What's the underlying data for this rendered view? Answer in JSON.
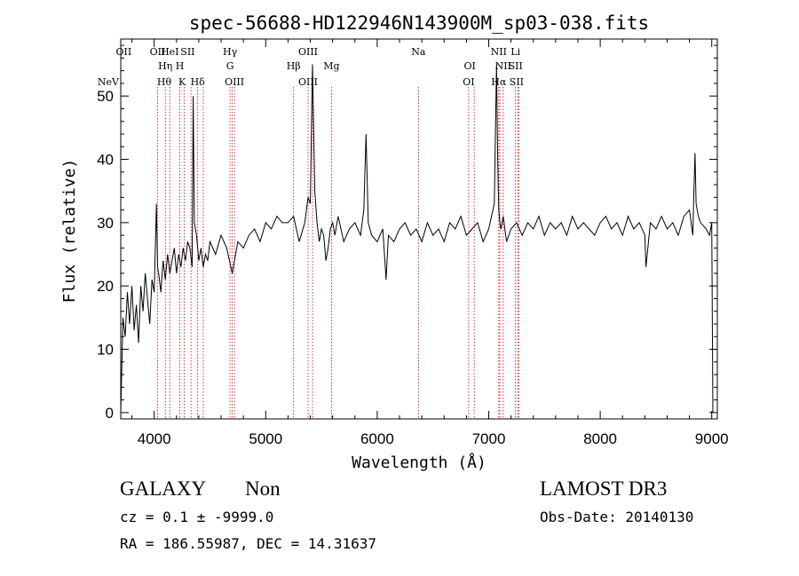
{
  "chart_data": {
    "type": "line",
    "title": "spec-56688-HD122946N143900M_sp03-038.fits",
    "xlabel": "Wavelength (Å)",
    "ylabel": "Flux (relative)",
    "xlim": [
      3700,
      9050
    ],
    "ylim": [
      -1,
      59
    ],
    "grid": false,
    "x_ticks": [
      4000,
      5000,
      6000,
      7000,
      8000,
      9000
    ],
    "y_ticks": [
      0,
      10,
      20,
      30,
      40,
      50
    ],
    "series": [
      {
        "x": [
          3700,
          3720,
          3740,
          3760,
          3780,
          3800,
          3820,
          3840,
          3860,
          3880,
          3900,
          3920,
          3940,
          3960,
          3980,
          4000,
          4020,
          4030,
          4040,
          4060,
          4080,
          4100,
          4120,
          4140,
          4160,
          4180,
          4200,
          4220,
          4240,
          4260,
          4280,
          4300,
          4320,
          4340,
          4350,
          4360,
          4380,
          4400,
          4420,
          4440,
          4460,
          4480,
          4500,
          4550,
          4600,
          4650,
          4700,
          4750,
          4800,
          4850,
          4900,
          4950,
          5000,
          5050,
          5100,
          5150,
          5200,
          5250,
          5300,
          5350,
          5380,
          5400,
          5420,
          5440,
          5460,
          5480,
          5500,
          5520,
          5540,
          5560,
          5580,
          5600,
          5620,
          5650,
          5700,
          5750,
          5800,
          5850,
          5880,
          5900,
          5920,
          5950,
          6000,
          6050,
          6080,
          6100,
          6150,
          6200,
          6250,
          6300,
          6350,
          6400,
          6450,
          6500,
          6550,
          6600,
          6650,
          6700,
          6750,
          6800,
          6850,
          6900,
          6950,
          7000,
          7050,
          7070,
          7080,
          7090,
          7100,
          7110,
          7130,
          7160,
          7200,
          7250,
          7300,
          7350,
          7400,
          7450,
          7500,
          7550,
          7600,
          7650,
          7700,
          7750,
          7800,
          7850,
          7900,
          7950,
          8000,
          8050,
          8100,
          8150,
          8200,
          8250,
          8300,
          8350,
          8400,
          8410,
          8450,
          8500,
          8550,
          8600,
          8650,
          8700,
          8750,
          8800,
          8830,
          8840,
          8850,
          8860,
          8880,
          8900,
          8950,
          8980,
          9000,
          9010
        ],
        "values": [
          0,
          15,
          12,
          19,
          14,
          20,
          13,
          17,
          11,
          20,
          16,
          22,
          18,
          14,
          21,
          19,
          33,
          23,
          22,
          19,
          24,
          21,
          25,
          22,
          24,
          26,
          22,
          25,
          23,
          26,
          24,
          27,
          26,
          23,
          50,
          30,
          28,
          24,
          26,
          23,
          25,
          24,
          27,
          25,
          28,
          26,
          22,
          27,
          26,
          28,
          29,
          27,
          30,
          29,
          31,
          30,
          30,
          31,
          27,
          30,
          34,
          33,
          55,
          35,
          30,
          27,
          29,
          28,
          24,
          26,
          29,
          30,
          28,
          31,
          27,
          29,
          30,
          28,
          32,
          44,
          30,
          28,
          27,
          29,
          21,
          28,
          27,
          29,
          30,
          28,
          29,
          27,
          30,
          28,
          29,
          27,
          30,
          29,
          31,
          28,
          29,
          30,
          27,
          29,
          33,
          55,
          40,
          32,
          30,
          29,
          31,
          27,
          29,
          30,
          28,
          30,
          29,
          31,
          28,
          30,
          29,
          30,
          28,
          31,
          29,
          30,
          29,
          28,
          30,
          31,
          29,
          30,
          28,
          31,
          29,
          30,
          28,
          23,
          30,
          29,
          31,
          29,
          30,
          28,
          31,
          32,
          28,
          35,
          41,
          33,
          31,
          30,
          29,
          28,
          30,
          0
        ]
      }
    ],
    "line_markers": [
      {
        "label": "NeV",
        "wavelength": 3426,
        "row": 3
      },
      {
        "label": "OII",
        "wavelength": 3727,
        "row": 1
      },
      {
        "label": "OII",
        "wavelength": 4030,
        "row": 1
      },
      {
        "label": "Hθ",
        "wavelength": 4090,
        "row": 3
      },
      {
        "label": "Hη",
        "wavelength": 4100,
        "row": 2
      },
      {
        "label": "HeI",
        "wavelength": 4140,
        "row": 1
      },
      {
        "label": "H",
        "wavelength": 4230,
        "row": 2
      },
      {
        "label": "K",
        "wavelength": 4250,
        "row": 3
      },
      {
        "label": "SII",
        "wavelength": 4300,
        "row": 1
      },
      {
        "label": "Hδ",
        "wavelength": 4390,
        "row": 3
      },
      {
        "label": "Hγ",
        "wavelength": 4680,
        "row": 1
      },
      {
        "label": "G",
        "wavelength": 4680,
        "row": 2
      },
      {
        "label": "OIII",
        "wavelength": 4720,
        "row": 3
      },
      {
        "label": "Hβ",
        "wavelength": 5250,
        "row": 2
      },
      {
        "label": "OIII",
        "wavelength": 5380,
        "row": 1
      },
      {
        "label": "OIII",
        "wavelength": 5380,
        "row": 3
      },
      {
        "label": "Mg",
        "wavelength": 5590,
        "row": 2
      },
      {
        "label": "Na",
        "wavelength": 6370,
        "row": 1
      },
      {
        "label": "OI",
        "wavelength": 6830,
        "row": 2
      },
      {
        "label": "OI",
        "wavelength": 6820,
        "row": 3
      },
      {
        "label": "NII",
        "wavelength": 7090,
        "row": 1
      },
      {
        "label": "NII",
        "wavelength": 7130,
        "row": 2
      },
      {
        "label": "Hα",
        "wavelength": 7090,
        "row": 3
      },
      {
        "label": "Li",
        "wavelength": 7240,
        "row": 1
      },
      {
        "label": "SII",
        "wavelength": 7240,
        "row": 2
      },
      {
        "label": "SII",
        "wavelength": 7250,
        "row": 3
      }
    ],
    "marker_lines": [
      4030,
      4100,
      4140,
      4230,
      4270,
      4330,
      4390,
      4440,
      4680,
      4700,
      4720,
      5250,
      5380,
      5420,
      5590,
      6370,
      6820,
      6870,
      7090,
      7100,
      7130,
      7240,
      7260,
      7270
    ]
  },
  "info": {
    "object_class": "GALAXY",
    "subclass": "Non",
    "redshift_line": "cz = 0.1 ± -9999.0",
    "coords_line": "RA = 186.55987, DEC =  14.31637",
    "survey": "LAMOST DR3",
    "obs_date": "Obs-Date: 20140130"
  },
  "colors": {
    "spectrum": "#000000",
    "marker_lines": "#cc0000",
    "axes": "#000000"
  }
}
